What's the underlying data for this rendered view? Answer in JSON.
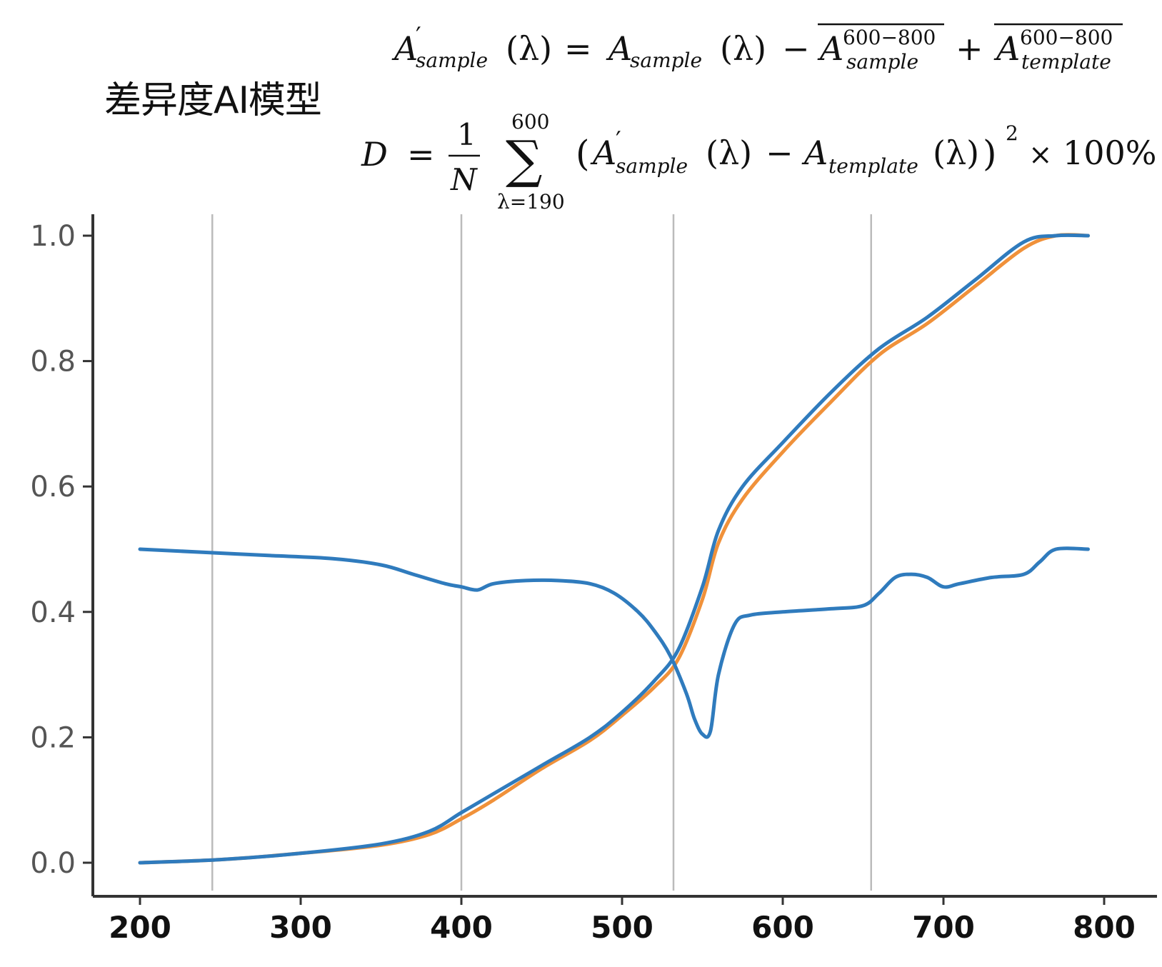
{
  "title": "差异度AI模型",
  "formula1": {
    "lhs_base": "A",
    "lhs_prime": "′",
    "lhs_sub": "sample",
    "lambda": "(λ)",
    "equals": "=",
    "term1_base": "A",
    "term1_sub": "sample",
    "minus": "−",
    "term2_base": "A",
    "term2_sup": "600−800",
    "term2_sub": "sample",
    "plus": "+",
    "term3_base": "A",
    "term3_sup": "600−800",
    "term3_sub": "template"
  },
  "formula2": {
    "lhs": "D",
    "equals": "=",
    "frac_num": "1",
    "frac_den": "N",
    "sum_symbol": "∑",
    "sum_upper": "600",
    "sum_lower": "λ=190",
    "open": "(",
    "a_base": "A",
    "a_prime": "′",
    "a_sub": "sample",
    "lambda": "(λ)",
    "minus": "−",
    "b_base": "A",
    "b_sub": "template",
    "b_lambda": "(λ)",
    "close": ")",
    "power": "2",
    "times": "×",
    "percent": "100%"
  },
  "chart_data": {
    "type": "line",
    "xlim": [
      200,
      800
    ],
    "ylim": [
      0.0,
      1.0
    ],
    "x_ticks": [
      "200",
      "300",
      "400",
      "500",
      "600",
      "700",
      "800"
    ],
    "y_ticks": [
      "0.0",
      "0.2",
      "0.4",
      "0.6",
      "0.8",
      "1.0"
    ],
    "vertical_lines_x": [
      245,
      400,
      532,
      655
    ],
    "colors": {
      "blue": "#2f7bbd",
      "orange": "#f0913a",
      "vline": "#bbbbbb",
      "axis": "#333333"
    },
    "series": [
      {
        "color": "blue",
        "x": [
          200,
          240,
          280,
          320,
          350,
          370,
          390,
          400,
          410,
          420,
          440,
          460,
          480,
          495,
          510,
          520,
          530,
          540,
          545,
          550,
          555,
          560,
          570,
          580,
          600,
          630,
          650,
          660,
          670,
          680,
          690,
          700,
          710,
          730,
          750,
          760,
          770,
          790
        ],
        "y": [
          0.5,
          0.495,
          0.49,
          0.485,
          0.475,
          0.46,
          0.445,
          0.44,
          0.435,
          0.445,
          0.45,
          0.45,
          0.445,
          0.43,
          0.4,
          0.37,
          0.33,
          0.27,
          0.23,
          0.205,
          0.21,
          0.3,
          0.38,
          0.395,
          0.4,
          0.405,
          0.41,
          0.43,
          0.455,
          0.46,
          0.455,
          0.44,
          0.445,
          0.455,
          0.46,
          0.48,
          0.5,
          0.5
        ]
      },
      {
        "color": "blue",
        "x": [
          200,
          250,
          300,
          350,
          380,
          400,
          420,
          450,
          480,
          500,
          520,
          535,
          550,
          560,
          575,
          600,
          630,
          660,
          690,
          720,
          750,
          770,
          790
        ],
        "y": [
          0.0,
          0.005,
          0.015,
          0.03,
          0.05,
          0.08,
          0.11,
          0.155,
          0.2,
          0.24,
          0.29,
          0.34,
          0.44,
          0.53,
          0.6,
          0.67,
          0.75,
          0.82,
          0.87,
          0.93,
          0.99,
          1.0,
          1.0
        ]
      },
      {
        "color": "orange",
        "x": [
          200,
          250,
          300,
          350,
          380,
          400,
          420,
          450,
          480,
          500,
          520,
          535,
          550,
          560,
          575,
          600,
          630,
          660,
          690,
          720,
          750,
          770,
          790
        ],
        "y": [
          0.0,
          0.005,
          0.015,
          0.028,
          0.045,
          0.07,
          0.1,
          0.15,
          0.195,
          0.235,
          0.28,
          0.325,
          0.42,
          0.51,
          0.58,
          0.655,
          0.735,
          0.81,
          0.86,
          0.92,
          0.98,
          1.0,
          1.0
        ]
      }
    ]
  }
}
